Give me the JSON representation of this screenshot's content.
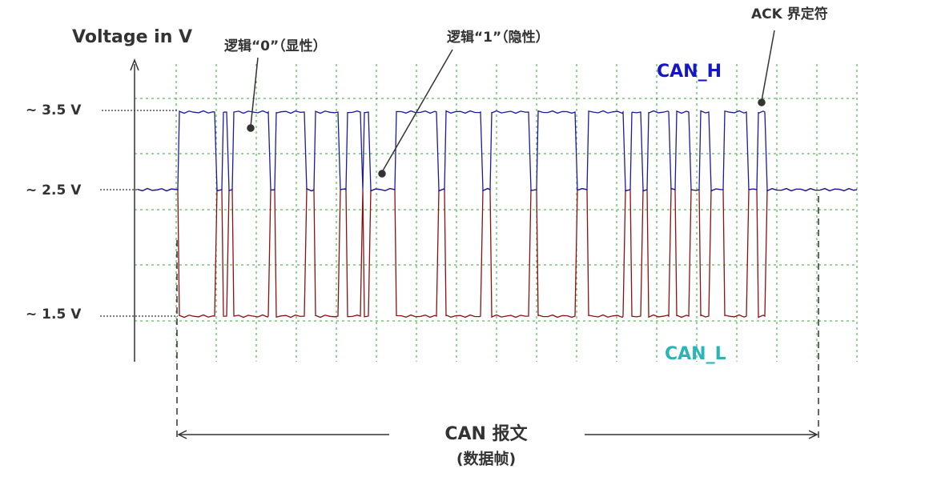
{
  "axis": {
    "title": "Voltage in V",
    "levels": [
      "~ 3.5 V",
      "~ 2.5 V",
      "~ 1.5 V"
    ]
  },
  "annotations": {
    "logic0": "逻辑“0”（显性）",
    "logic1": "逻辑“1”（隐性）",
    "ack": "ACK 界定符"
  },
  "signals": {
    "high": "CAN_H",
    "low": "CAN_L"
  },
  "frame": {
    "label": "CAN 报文",
    "sublabel": "(数据帧)"
  }
}
